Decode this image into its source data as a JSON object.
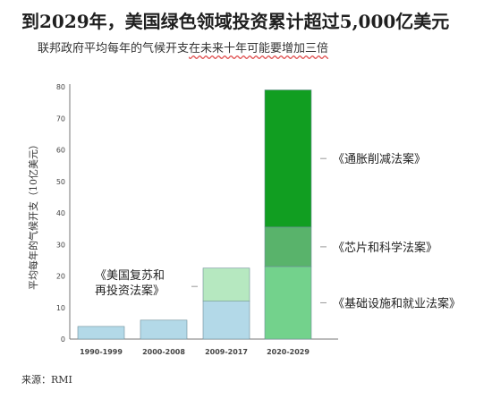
{
  "title": "到2029年，美国绿色领域投资累计超过5,000亿美元",
  "subtitle": "联邦政府平均每年的气候开支",
  "subtitle_tail": "在未来十年可能要增加三倍",
  "source": "来源：RMI",
  "colors": {
    "baseline": "#b3d9e8",
    "recovery_act": "#b6e8c0",
    "infrastructure_act": "#73d28c",
    "chips_act": "#59b36b",
    "inflation_reduction_act": "#119e21",
    "axis": "#777777",
    "leader": "#999999"
  },
  "chart_data": {
    "type": "bar",
    "stacked": true,
    "ylabel": "平均每年的气候开支（10亿美元）",
    "ylim": [
      0,
      80
    ],
    "yticks": [
      0,
      10,
      20,
      30,
      40,
      50,
      60,
      70,
      80
    ],
    "categories": [
      "1990-1999",
      "2000-2008",
      "2009-2017",
      "2020-2029"
    ],
    "series": [
      {
        "key": "baseline",
        "values": [
          4,
          6,
          12,
          0
        ]
      },
      {
        "key": "recovery_act",
        "name": "《美国复苏和再投资法案》",
        "values": [
          0,
          0,
          10.5,
          0
        ]
      },
      {
        "key": "infrastructure_act",
        "name": "《基础设施和就业法案》",
        "values": [
          0,
          0,
          0,
          23
        ]
      },
      {
        "key": "chips_act",
        "name": "《芯片和科学法案》",
        "values": [
          0,
          0,
          0,
          12.5
        ]
      },
      {
        "key": "inflation_reduction_act",
        "name": "《通胀削减法案》",
        "values": [
          0,
          0,
          0,
          43.5
        ]
      }
    ],
    "annotations": [
      {
        "series": "inflation_reduction_act",
        "lines": [
          "《通胀削减法案》"
        ]
      },
      {
        "series": "chips_act",
        "lines": [
          "《芯片和科学法案》"
        ]
      },
      {
        "series": "infrastructure_act",
        "lines": [
          "《基础设施和就业法案》"
        ]
      },
      {
        "series": "recovery_act",
        "lines": [
          "《美国复苏和",
          "再投资法案》"
        ]
      }
    ]
  }
}
